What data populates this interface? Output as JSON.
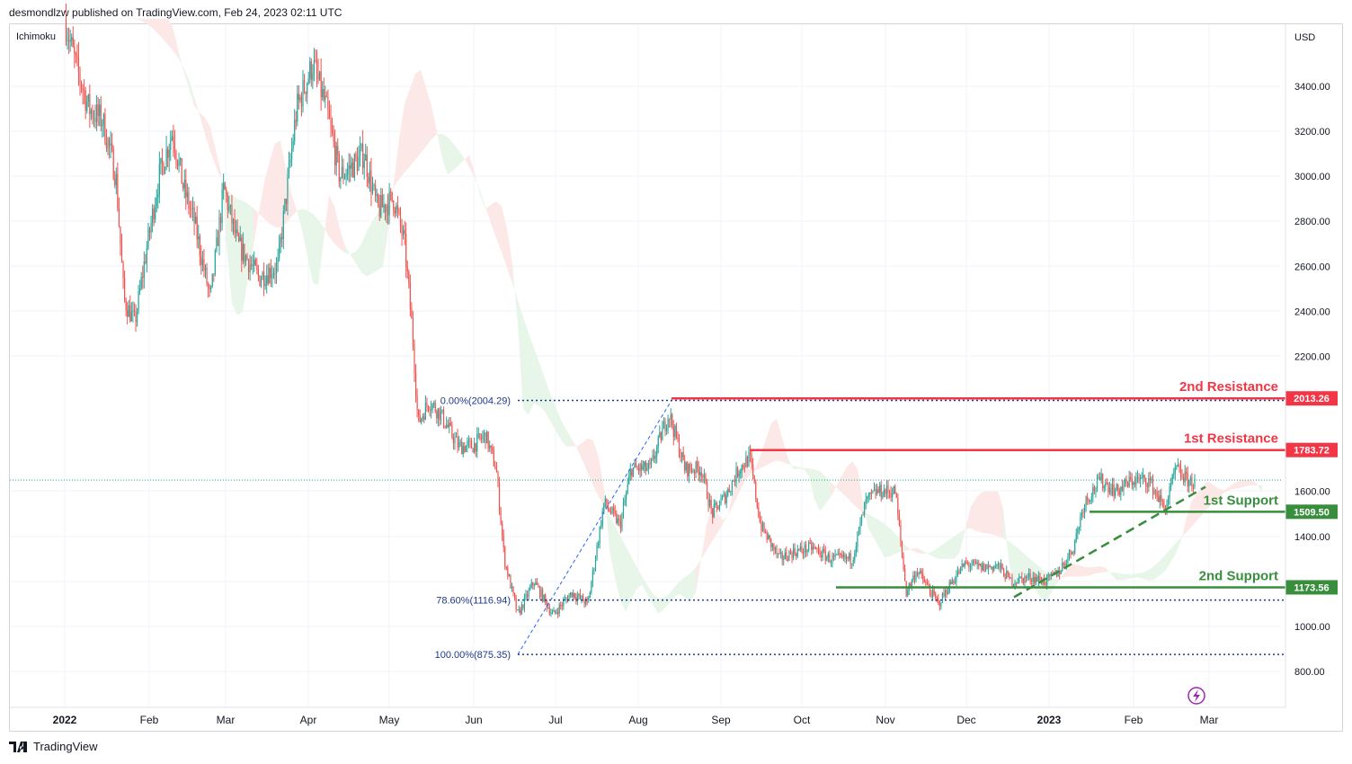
{
  "header": {
    "publisher": "desmondlzw published on TradingView.com, Feb 24, 2023 02:11 UTC"
  },
  "indicator": "Ichimoku",
  "footer": {
    "brand": "TradingView"
  },
  "colors": {
    "up": "#26a69a",
    "down": "#ef5350",
    "resistance": "#f23645",
    "support": "#388e3c",
    "fib": "#2962ff",
    "cloud_bull": "#e8f5e9",
    "cloud_bear": "#fde8e8"
  },
  "icons": [
    "tradingview-logo-icon",
    "lightning-icon"
  ],
  "chart_data": {
    "type": "candlestick",
    "title": "",
    "currency_label": "USD",
    "x_ticks": [
      "2022",
      "Feb",
      "Mar",
      "Apr",
      "May",
      "Jun",
      "Jul",
      "Aug",
      "Sep",
      "Oct",
      "Nov",
      "Dec",
      "2023",
      "Feb",
      "Mar"
    ],
    "y_ticks": [
      "3400.00",
      "3200.00",
      "3000.00",
      "2800.00",
      "2600.00",
      "2400.00",
      "2200.00",
      "1600.00",
      "1400.00",
      "1000.00",
      "800.00"
    ],
    "ylim": [
      720,
      3600
    ],
    "price_path": [
      [
        "2022-01-01",
        3700
      ],
      [
        "2022-01-05",
        3500
      ],
      [
        "2022-01-10",
        3300
      ],
      [
        "2022-01-15",
        3250
      ],
      [
        "2022-01-20",
        3000
      ],
      [
        "2022-01-23",
        2450
      ],
      [
        "2022-01-27",
        2350
      ],
      [
        "2022-01-31",
        2650
      ],
      [
        "2022-02-05",
        3000
      ],
      [
        "2022-02-10",
        3200
      ],
      [
        "2022-02-14",
        2950
      ],
      [
        "2022-02-18",
        2800
      ],
      [
        "2022-02-24",
        2450
      ],
      [
        "2022-03-01",
        2950
      ],
      [
        "2022-03-06",
        2700
      ],
      [
        "2022-03-14",
        2550
      ],
      [
        "2022-03-21",
        2600
      ],
      [
        "2022-03-28",
        3300
      ],
      [
        "2022-04-03",
        3500
      ],
      [
        "2022-04-08",
        3300
      ],
      [
        "2022-04-13",
        3000
      ],
      [
        "2022-04-18",
        3050
      ],
      [
        "2022-04-22",
        3100
      ],
      [
        "2022-04-27",
        2850
      ],
      [
        "2022-05-03",
        2900
      ],
      [
        "2022-05-07",
        2700
      ],
      [
        "2022-05-10",
        2300
      ],
      [
        "2022-05-12",
        1900
      ],
      [
        "2022-05-16",
        2000
      ],
      [
        "2022-05-20",
        1950
      ],
      [
        "2022-05-27",
        1800
      ],
      [
        "2022-06-01",
        1800
      ],
      [
        "2022-06-06",
        1850
      ],
      [
        "2022-06-10",
        1700
      ],
      [
        "2022-06-13",
        1300
      ],
      [
        "2022-06-18",
        1050
      ],
      [
        "2022-06-20",
        1100
      ],
      [
        "2022-06-24",
        1200
      ],
      [
        "2022-07-01",
        1050
      ],
      [
        "2022-07-08",
        1150
      ],
      [
        "2022-07-14",
        1100
      ],
      [
        "2022-07-20",
        1550
      ],
      [
        "2022-07-26",
        1450
      ],
      [
        "2022-07-30",
        1700
      ],
      [
        "2022-08-06",
        1700
      ],
      [
        "2022-08-13",
        1950
      ],
      [
        "2022-08-19",
        1700
      ],
      [
        "2022-08-25",
        1700
      ],
      [
        "2022-08-29",
        1500
      ],
      [
        "2022-09-03",
        1580
      ],
      [
        "2022-09-08",
        1700
      ],
      [
        "2022-09-12",
        1750
      ],
      [
        "2022-09-16",
        1450
      ],
      [
        "2022-09-23",
        1300
      ],
      [
        "2022-09-28",
        1330
      ],
      [
        "2022-10-05",
        1350
      ],
      [
        "2022-10-12",
        1300
      ],
      [
        "2022-10-20",
        1300
      ],
      [
        "2022-10-25",
        1550
      ],
      [
        "2022-10-29",
        1600
      ],
      [
        "2022-11-05",
        1600
      ],
      [
        "2022-11-09",
        1150
      ],
      [
        "2022-11-13",
        1250
      ],
      [
        "2022-11-21",
        1100
      ],
      [
        "2022-11-26",
        1200
      ],
      [
        "2022-12-01",
        1280
      ],
      [
        "2022-12-07",
        1260
      ],
      [
        "2022-12-13",
        1270
      ],
      [
        "2022-12-18",
        1200
      ],
      [
        "2022-12-25",
        1220
      ],
      [
        "2022-12-31",
        1200
      ],
      [
        "2023-01-05",
        1250
      ],
      [
        "2023-01-10",
        1350
      ],
      [
        "2023-01-14",
        1550
      ],
      [
        "2023-01-20",
        1650
      ],
      [
        "2023-01-26",
        1600
      ],
      [
        "2023-02-01",
        1650
      ],
      [
        "2023-02-07",
        1650
      ],
      [
        "2023-02-13",
        1520
      ],
      [
        "2023-02-17",
        1700
      ],
      [
        "2023-02-21",
        1650
      ],
      [
        "2023-02-24",
        1640
      ]
    ],
    "current_price_line": 1650,
    "levels": [
      {
        "name": "2nd Resistance",
        "value": 2013.26,
        "label": "2013.26",
        "kind": "resistance",
        "from": "2022-08-14"
      },
      {
        "name": "1st Resistance",
        "value": 1783.72,
        "label": "1783.72",
        "kind": "resistance",
        "from": "2022-09-12"
      },
      {
        "name": "1st Support",
        "value": 1509.5,
        "label": "1509.50",
        "kind": "support",
        "from": "2023-01-16"
      },
      {
        "name": "2nd Support",
        "value": 1173.56,
        "label": "1173.56",
        "kind": "support",
        "from": "2022-10-14"
      }
    ],
    "fibonacci": [
      {
        "label": "0.00%(2004.29)",
        "value": 2004.29
      },
      {
        "label": "78.60%(1116.94)",
        "value": 1116.94
      },
      {
        "label": "100.00%(875.35)",
        "value": 875.35
      }
    ],
    "fib_anchor": {
      "low": [
        "2022-06-18",
        875.35
      ],
      "high": [
        "2022-08-14",
        2004.29
      ]
    },
    "trendline": {
      "from": [
        "2022-12-19",
        1130
      ],
      "to": [
        "2023-02-28",
        1620
      ]
    }
  }
}
